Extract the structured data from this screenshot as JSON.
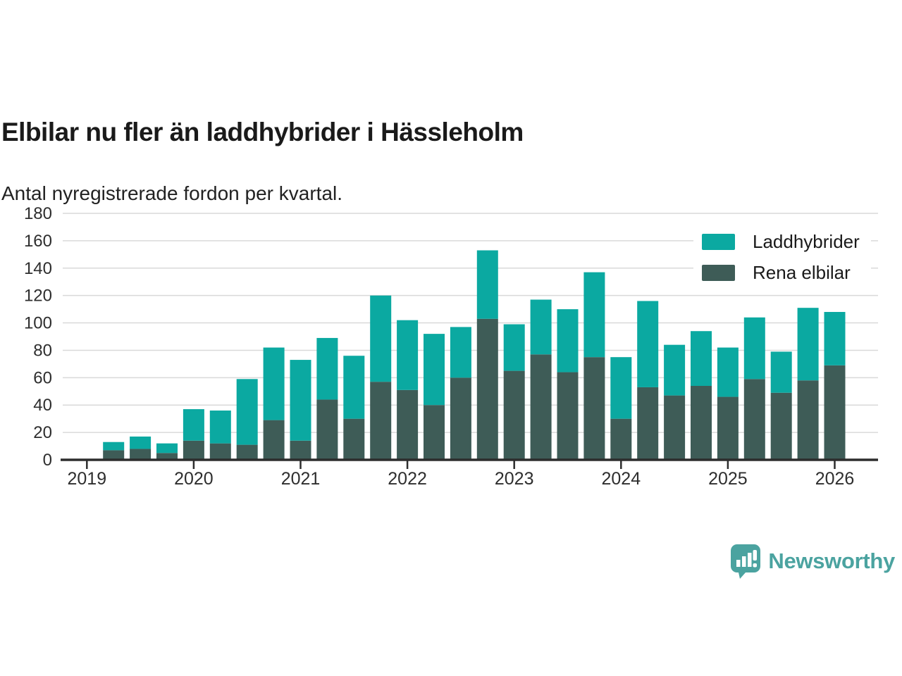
{
  "header": {
    "title": "Elbilar nu fler än laddhybrider i Hässleholm",
    "subtitle": "Antal nyregistrerade fordon per kvartal."
  },
  "legend": {
    "items": [
      {
        "label": "Laddhybrider",
        "color": "#0ba9a1"
      },
      {
        "label": "Rena elbilar",
        "color": "#3e5c57"
      }
    ]
  },
  "branding": {
    "name": "Newsworthy",
    "color": "#4ba3a0",
    "icon": "newsworthy-speech-bubble-bar-chart-icon"
  },
  "colors": {
    "grid": "#d9d9d9",
    "axis": "#2d2d2d",
    "tick_text": "#2e2e2e",
    "background": "#ffffff"
  },
  "chart_data": {
    "type": "bar",
    "stacked": true,
    "title": "Elbilar nu fler än laddhybrider i Hässleholm",
    "subtitle": "Antal nyregistrerade fordon per kvartal.",
    "xlabel": "",
    "ylabel": "",
    "ylim": [
      0,
      180
    ],
    "yticks": [
      0,
      20,
      40,
      60,
      80,
      100,
      120,
      140,
      160,
      180
    ],
    "grid": "horizontal",
    "legend_position": "top-right",
    "categories": [
      "2019 Q2",
      "2019 Q3",
      "2019 Q4",
      "2020 Q1",
      "2020 Q2",
      "2020 Q3",
      "2020 Q4",
      "2021 Q1",
      "2021 Q2",
      "2021 Q3",
      "2021 Q4",
      "2022 Q1",
      "2022 Q2",
      "2022 Q3",
      "2022 Q4",
      "2023 Q1",
      "2023 Q2",
      "2023 Q3",
      "2023 Q4",
      "2024 Q1",
      "2024 Q2",
      "2024 Q3",
      "2024 Q4",
      "2025 Q1",
      "2025 Q2",
      "2025 Q3",
      "2025 Q4",
      "2026 Q1"
    ],
    "series": [
      {
        "name": "Rena elbilar",
        "color": "#3e5c57",
        "stack_position": "bottom",
        "values": [
          7,
          8,
          5,
          14,
          12,
          11,
          29,
          14,
          44,
          30,
          57,
          51,
          40,
          60,
          103,
          65,
          77,
          64,
          75,
          30,
          53,
          47,
          54,
          46,
          59,
          49,
          58,
          69
        ]
      },
      {
        "name": "Laddhybrider",
        "color": "#0ba9a1",
        "stack_position": "top",
        "values": [
          6,
          9,
          7,
          23,
          24,
          48,
          53,
          59,
          45,
          46,
          63,
          51,
          52,
          37,
          50,
          34,
          40,
          46,
          62,
          45,
          63,
          37,
          40,
          36,
          45,
          30,
          53,
          39
        ]
      }
    ],
    "stack_totals": [
      13,
      17,
      12,
      37,
      36,
      59,
      82,
      73,
      89,
      76,
      120,
      102,
      92,
      97,
      153,
      99,
      117,
      110,
      137,
      75,
      116,
      84,
      94,
      82,
      104,
      79,
      111,
      108
    ],
    "x_axis_year_labels": [
      "2019",
      "2020",
      "2021",
      "2022",
      "2023",
      "2024",
      "2025",
      "2026"
    ]
  }
}
